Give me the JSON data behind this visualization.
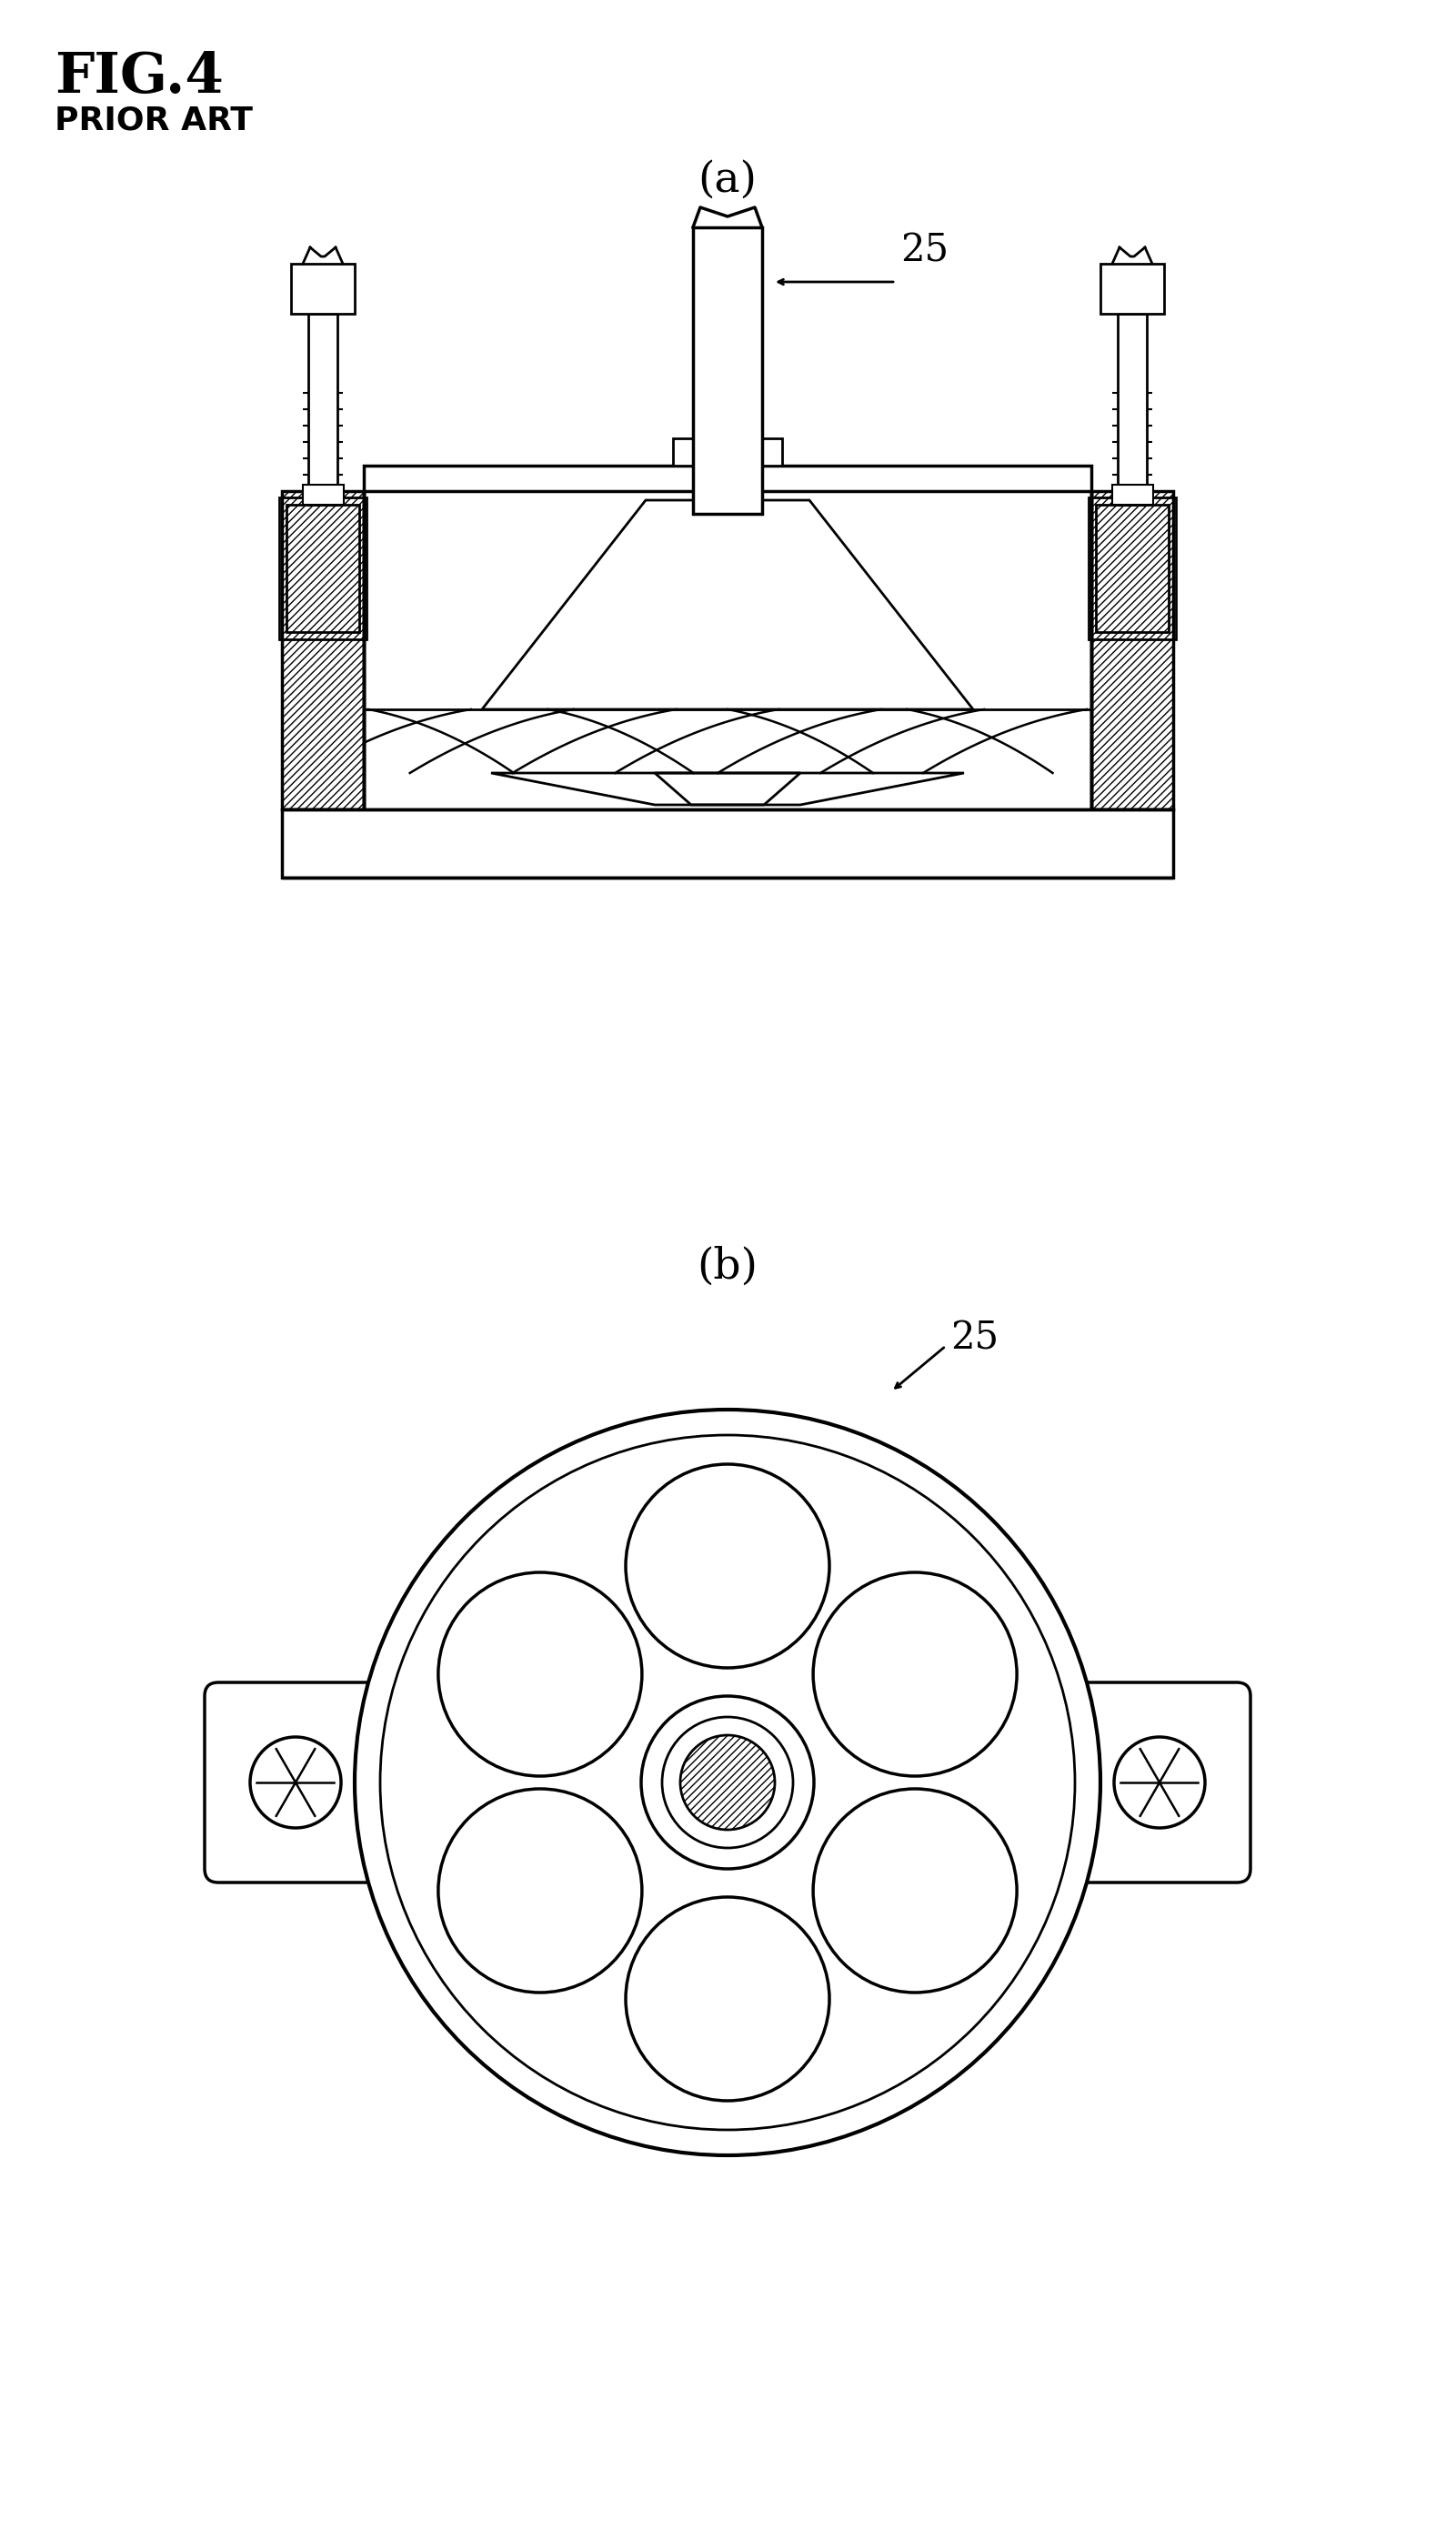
{
  "title": "FIG.4",
  "subtitle": "PRIOR ART",
  "label_a": "(a)",
  "label_b": "(b)",
  "ref_25_a": "25",
  "ref_25_b": "25",
  "bg_color": "#ffffff",
  "line_color": "#000000"
}
